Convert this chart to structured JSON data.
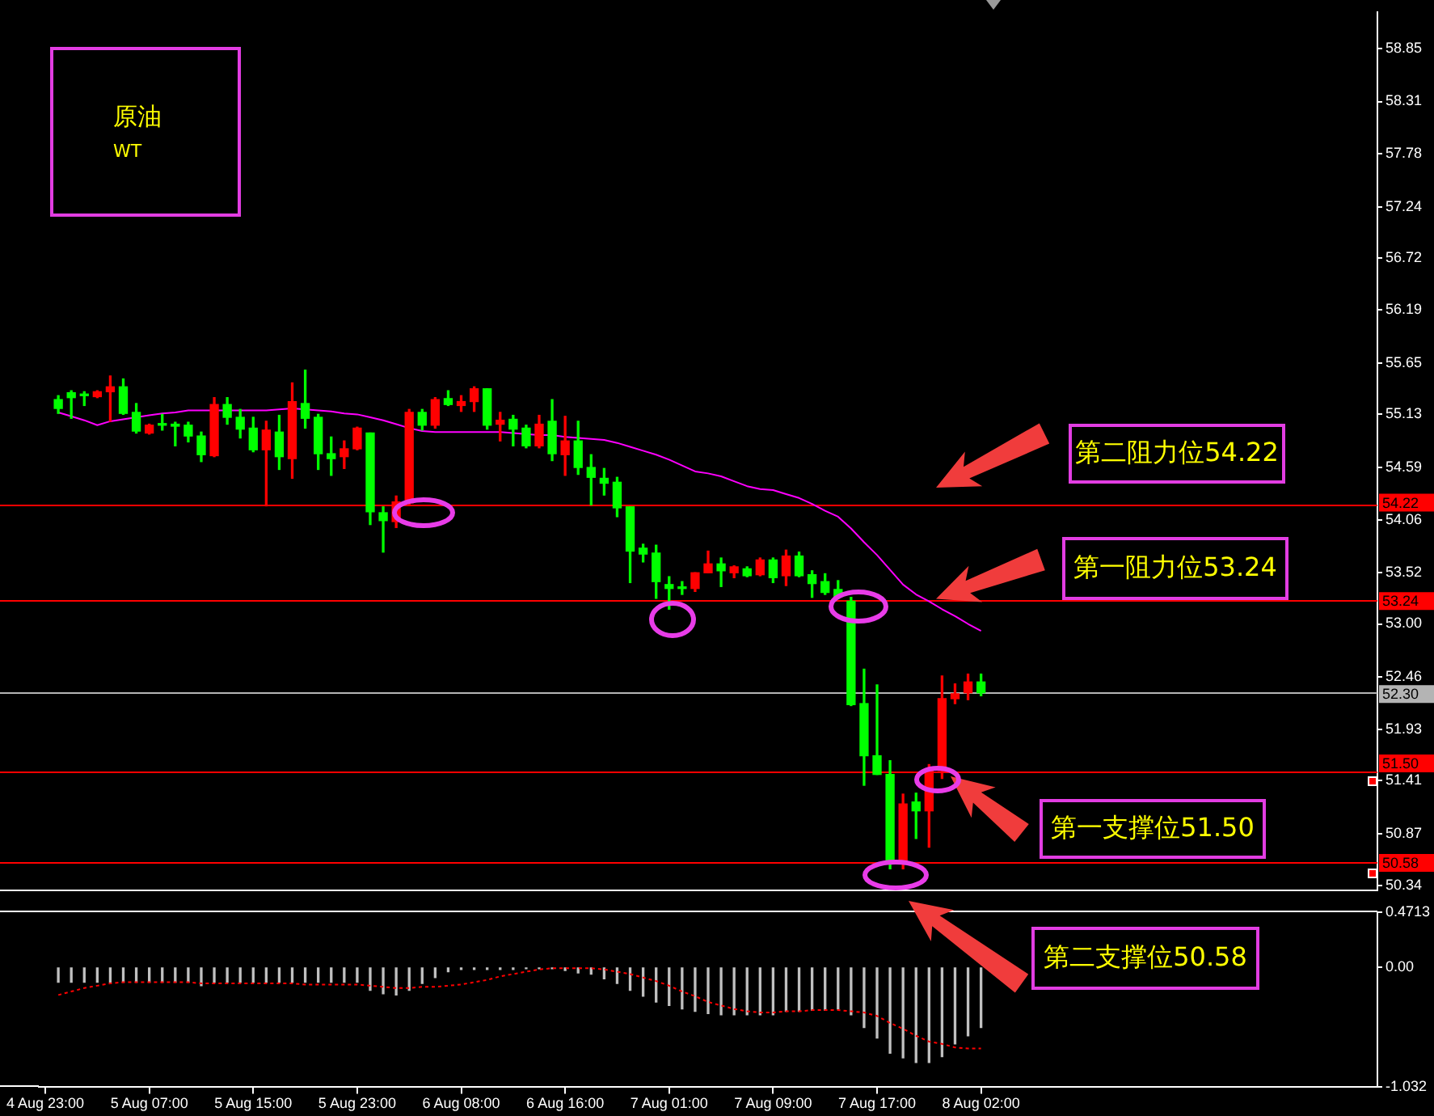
{
  "chart_data": [
    {
      "type": "candlestick",
      "title": "原油",
      "subtitle": "WT",
      "categories": [
        null,
        null,
        null,
        null,
        null,
        null,
        null,
        null,
        null,
        null,
        null,
        null,
        null,
        null,
        null,
        null,
        null,
        null,
        null,
        null,
        null,
        null,
        null,
        null,
        null,
        null,
        null,
        null,
        null,
        null,
        null,
        null,
        null,
        null,
        null,
        null,
        null,
        null,
        null,
        null,
        null,
        null,
        null,
        null,
        null,
        null,
        null,
        null,
        null,
        null,
        null,
        null,
        null,
        null,
        null,
        null,
        null,
        null,
        null,
        null,
        null,
        null,
        null,
        null,
        null,
        null,
        null,
        null,
        null,
        null,
        null,
        null,
        null,
        null,
        null,
        null,
        null,
        null,
        null,
        null,
        null,
        null,
        null,
        null,
        null,
        null,
        null,
        null,
        null,
        null,
        null,
        null,
        null,
        null,
        null,
        null,
        null,
        null,
        null,
        null,
        null,
        null,
        null
      ],
      "ohlc": [
        null,
        [
          55.28,
          55.32,
          55.14,
          55.19
        ],
        [
          55.35,
          55.37,
          55.09,
          55.3
        ],
        [
          55.33,
          55.36,
          55.22,
          55.32
        ],
        [
          55.31,
          55.37,
          55.3,
          55.36
        ],
        [
          55.36,
          55.52,
          55.06,
          55.41
        ],
        [
          55.41,
          55.49,
          55.13,
          55.14
        ],
        [
          55.15,
          55.24,
          54.94,
          54.96
        ],
        [
          54.94,
          55.03,
          54.93,
          55.02
        ],
        [
          55.03,
          55.13,
          54.97,
          55.02
        ],
        [
          55.03,
          55.05,
          54.81,
          55.01
        ],
        [
          55.02,
          55.05,
          54.85,
          54.91
        ],
        [
          54.91,
          54.95,
          54.65,
          54.72
        ],
        [
          54.71,
          55.3,
          54.7,
          55.23
        ],
        [
          55.23,
          55.3,
          55.03,
          55.1
        ],
        [
          55.1,
          55.18,
          54.89,
          54.98
        ],
        [
          54.99,
          55.1,
          54.75,
          54.77
        ],
        [
          54.77,
          55.06,
          54.2,
          54.97
        ],
        [
          54.95,
          55.12,
          54.57,
          54.7
        ],
        [
          54.68,
          55.45,
          54.48,
          55.26
        ],
        [
          55.24,
          55.58,
          54.99,
          55.09
        ],
        [
          55.1,
          55.13,
          54.57,
          54.73
        ],
        [
          54.73,
          54.9,
          54.51,
          54.68
        ],
        [
          54.7,
          54.86,
          54.58,
          54.78
        ],
        [
          54.78,
          55.0,
          54.77,
          54.99
        ],
        [
          54.94,
          54.94,
          54.01,
          54.14
        ],
        [
          54.13,
          54.19,
          53.73,
          54.05
        ],
        [
          54.04,
          54.3,
          53.98,
          54.24
        ],
        [
          54.23,
          55.18,
          54.21,
          55.15
        ],
        [
          55.15,
          55.18,
          54.97,
          55.02
        ],
        [
          55.02,
          55.3,
          54.99,
          55.28
        ],
        [
          55.29,
          55.37,
          55.22,
          55.23
        ],
        [
          55.22,
          55.32,
          55.16,
          55.26
        ],
        [
          55.26,
          55.41,
          55.16,
          55.39
        ],
        [
          55.39,
          55.39,
          54.98,
          55.02
        ],
        [
          55.03,
          55.15,
          54.86,
          55.07
        ],
        [
          55.08,
          55.12,
          54.81,
          54.98
        ],
        [
          54.99,
          55.02,
          54.79,
          54.81
        ],
        [
          54.81,
          55.12,
          54.79,
          55.03
        ],
        [
          55.06,
          55.28,
          54.66,
          54.73
        ],
        [
          54.72,
          55.11,
          54.51,
          54.86
        ],
        [
          54.86,
          55.06,
          54.52,
          54.59
        ],
        [
          54.59,
          54.72,
          54.21,
          54.49
        ],
        [
          54.48,
          54.58,
          54.31,
          54.43
        ],
        [
          54.44,
          54.49,
          54.09,
          54.18
        ],
        [
          54.19,
          54.19,
          53.42,
          53.74
        ],
        [
          53.77,
          53.81,
          53.63,
          53.71
        ],
        [
          53.72,
          53.8,
          53.26,
          53.43
        ],
        [
          53.4,
          53.48,
          53.15,
          53.36
        ],
        [
          53.37,
          53.43,
          53.3,
          53.36
        ],
        [
          53.36,
          53.52,
          53.33,
          53.52
        ],
        [
          53.52,
          53.74,
          53.52,
          53.61
        ],
        [
          53.61,
          53.67,
          53.38,
          53.54
        ],
        [
          53.52,
          53.59,
          53.47,
          53.58
        ],
        [
          53.56,
          53.58,
          53.48,
          53.49
        ],
        [
          53.5,
          53.67,
          53.49,
          53.65
        ],
        [
          53.65,
          53.67,
          53.42,
          53.47
        ],
        [
          53.49,
          53.75,
          53.39,
          53.69
        ],
        [
          53.69,
          53.73,
          53.48,
          53.49
        ],
        [
          53.5,
          53.54,
          53.27,
          53.41
        ],
        [
          53.43,
          53.51,
          53.3,
          53.32
        ],
        [
          53.35,
          53.44,
          53.26,
          53.28
        ],
        [
          53.23,
          53.27,
          52.17,
          52.18
        ],
        [
          52.19,
          52.54,
          51.36,
          51.66
        ],
        [
          51.66,
          52.38,
          51.47,
          51.47
        ],
        [
          51.47,
          51.61,
          50.51,
          50.56
        ],
        [
          50.56,
          51.27,
          50.51,
          51.17
        ],
        [
          51.19,
          51.28,
          50.82,
          51.1
        ],
        [
          51.1,
          51.57,
          50.73,
          51.51
        ],
        [
          51.51,
          52.47,
          51.43,
          52.24
        ],
        [
          52.24,
          52.39,
          52.19,
          52.29
        ],
        [
          52.3,
          52.49,
          52.23,
          52.41
        ],
        [
          52.41,
          52.49,
          52.27,
          52.3
        ],
        null,
        null,
        null,
        null,
        null,
        null,
        null,
        null,
        null,
        null,
        null,
        null,
        null,
        null,
        null,
        null,
        null,
        null,
        null,
        null,
        null,
        null,
        null,
        null,
        null,
        null,
        null,
        null,
        null,
        null
      ],
      "colors": [
        null,
        "#00ff00",
        "#00ff00",
        "#00ff00",
        "#ff0000",
        "#ff0000",
        "#00ff00",
        "#00ff00",
        "#ff0000",
        "#00ff00",
        "#00ff00",
        "#00ff00",
        "#00ff00",
        "#ff0000",
        "#00ff00",
        "#00ff00",
        "#00ff00",
        "#ff0000",
        "#00ff00",
        "#ff0000",
        "#00ff00",
        "#00ff00",
        "#00ff00",
        "#ff0000",
        "#ff0000",
        "#00ff00",
        "#00ff00",
        "#ff0000",
        "#ff0000",
        "#00ff00",
        "#ff0000",
        "#00ff00",
        "#ff0000",
        "#ff0000",
        "#00ff00",
        "#ff0000",
        "#00ff00",
        "#00ff00",
        "#ff0000",
        "#00ff00",
        "#ff0000",
        "#00ff00",
        "#00ff00",
        "#00ff00",
        "#00ff00",
        "#00ff00",
        "#00ff00",
        "#00ff00",
        "#00ff00",
        "#00ff00",
        "#ff0000",
        "#ff0000",
        "#00ff00",
        "#ff0000",
        "#00ff00",
        "#ff0000",
        "#00ff00",
        "#ff0000",
        "#00ff00",
        "#00ff00",
        "#00ff00",
        "#00ff00",
        "#00ff00",
        "#00ff00",
        "#00ff00",
        "#00ff00",
        "#ff0000",
        "#00ff00",
        "#ff0000",
        "#ff0000",
        "#ff0000",
        "#ff0000",
        "#00ff00",
        null,
        null,
        null,
        null,
        null,
        null,
        null,
        null,
        null,
        null,
        null,
        null,
        null,
        null,
        null,
        null,
        null,
        null,
        null,
        null,
        null,
        null,
        null,
        null,
        null,
        null,
        null,
        null,
        null,
        null
      ],
      "series": [
        {
          "type": "line",
          "color": "#ff00ff",
          "values": [
            null,
            55.15,
            55.11,
            55.07,
            55.02,
            55.06,
            55.08,
            55.1,
            55.12,
            55.14,
            55.15,
            55.17,
            55.17,
            55.17,
            55.17,
            55.17,
            55.17,
            55.17,
            55.18,
            55.19,
            55.18,
            55.17,
            55.16,
            55.14,
            55.13,
            55.1,
            55.07,
            55.03,
            54.99,
            54.96,
            54.95,
            54.95,
            54.95,
            54.95,
            54.95,
            54.95,
            54.94,
            54.93,
            54.92,
            54.92,
            54.9,
            54.89,
            54.88,
            54.87,
            54.84,
            54.8,
            54.76,
            54.72,
            54.67,
            54.61,
            54.55,
            54.53,
            54.5,
            54.45,
            54.4,
            54.37,
            54.36,
            54.32,
            54.28,
            54.22,
            54.15,
            54.09,
            53.97,
            53.83,
            53.7,
            53.55,
            53.4,
            53.3,
            53.23,
            53.15,
            53.08,
            53.0,
            52.93,
            null,
            null,
            null,
            null,
            null,
            null,
            null,
            null,
            null,
            null,
            null,
            null,
            null,
            null,
            null,
            null,
            null,
            null,
            null,
            null,
            null,
            null,
            null,
            null,
            null,
            null,
            null,
            null,
            null,
            null
          ]
        }
      ],
      "ylim": [
        50.29,
        59.22
      ],
      "yticks": [
        58.85,
        58.31,
        57.78,
        57.24,
        56.72,
        56.19,
        55.65,
        55.13,
        54.59,
        54.06,
        53.52,
        {
          "value": 53,
          "label": "53.00"
        },
        52.46,
        51.93,
        51.41,
        50.87,
        50.34
      ],
      "ref_lines": [
        {
          "axis": "y",
          "value": 54.22,
          "label": "54.22",
          "color": "#ff0000"
        },
        {
          "axis": "y",
          "value": 53.24,
          "label": "53.24",
          "color": "#ff0000"
        },
        {
          "axis": "y",
          "value": 52.3,
          "label": "52.30",
          "color": "#b4b4b4"
        },
        {
          "axis": "y",
          "value": 51.5,
          "label": "51.50",
          "color": "#ff0000"
        },
        {
          "axis": "y",
          "value": 50.58,
          "label": "50.58",
          "color": "#ff0000"
        }
      ],
      "annotations": [
        {
          "text": "第二阻力位54.22",
          "y": 54.22
        },
        {
          "text": "第一阻力位53.24",
          "y": 53.24
        },
        {
          "text": "第一支撑位51.50",
          "y": 51.5
        },
        "第二支撑位50.58"
      ],
      "tick_labels": "y"
    },
    {
      "type": "bar",
      "categories": [
        "4 Aug 23:00",
        null,
        null,
        null,
        null,
        null,
        null,
        null,
        "5 Aug 07:00",
        null,
        null,
        null,
        null,
        null,
        null,
        null,
        "5 Aug 15:00",
        null,
        null,
        null,
        null,
        null,
        null,
        null,
        "5 Aug 23:00",
        null,
        null,
        null,
        null,
        null,
        null,
        null,
        "6 Aug 08:00",
        null,
        null,
        null,
        null,
        null,
        null,
        null,
        "6 Aug 16:00",
        null,
        null,
        null,
        null,
        null,
        null,
        null,
        "7 Aug 01:00",
        null,
        null,
        null,
        null,
        null,
        null,
        null,
        "7 Aug 09:00",
        null,
        null,
        null,
        null,
        null,
        null,
        null,
        "7 Aug 17:00",
        null,
        null,
        null,
        null,
        null,
        null,
        null,
        "8 Aug 02:00",
        null,
        null,
        null,
        null,
        null,
        null,
        null,
        null,
        null,
        null,
        null,
        null,
        null,
        null,
        null,
        null,
        null,
        null,
        null,
        null,
        null,
        null,
        null,
        null,
        null,
        null,
        null,
        null,
        null,
        null
      ],
      "series": [
        {
          "color": "#c0c0c0",
          "values": [
            null,
            -0.13,
            -0.13,
            -0.13,
            -0.13,
            -0.13,
            -0.13,
            -0.13,
            -0.13,
            -0.13,
            -0.13,
            -0.13,
            -0.16,
            -0.13,
            -0.13,
            -0.13,
            -0.13,
            -0.13,
            -0.13,
            -0.13,
            -0.13,
            -0.13,
            -0.13,
            -0.13,
            -0.13,
            -0.2,
            -0.23,
            -0.24,
            -0.2,
            -0.14,
            -0.09,
            -0.04,
            -0.02,
            -0.02,
            -0.02,
            -0.02,
            -0.02,
            -0.01,
            -0.01,
            -0.01,
            -0.03,
            -0.05,
            -0.06,
            -0.1,
            -0.14,
            -0.2,
            -0.25,
            -0.3,
            -0.33,
            -0.36,
            -0.38,
            -0.4,
            -0.41,
            -0.41,
            -0.41,
            -0.41,
            -0.41,
            -0.38,
            -0.38,
            -0.37,
            -0.37,
            -0.36,
            -0.41,
            -0.52,
            -0.61,
            -0.74,
            -0.78,
            -0.82,
            -0.82,
            -0.77,
            -0.66,
            -0.59,
            -0.52,
            null,
            null,
            null,
            null,
            null,
            null,
            null,
            null,
            null,
            null,
            null,
            null,
            null,
            null,
            null,
            null,
            null,
            null,
            null,
            null,
            null,
            null,
            null,
            null,
            null,
            null,
            null,
            null,
            null,
            null
          ]
        },
        {
          "type": "line",
          "color": "#ff0000",
          "line_style": "dotted",
          "values": [
            null,
            -0.24,
            -0.21,
            -0.18,
            -0.16,
            -0.14,
            -0.13,
            -0.13,
            -0.13,
            -0.13,
            -0.13,
            -0.13,
            -0.14,
            -0.14,
            -0.14,
            -0.14,
            -0.14,
            -0.14,
            -0.14,
            -0.14,
            -0.15,
            -0.15,
            -0.15,
            -0.15,
            -0.15,
            -0.16,
            -0.17,
            -0.18,
            -0.18,
            -0.17,
            -0.17,
            -0.16,
            -0.15,
            -0.13,
            -0.11,
            -0.08,
            -0.06,
            -0.04,
            -0.02,
            -0.01,
            -0.01,
            -0.01,
            -0.01,
            -0.02,
            -0.04,
            -0.06,
            -0.09,
            -0.12,
            -0.16,
            -0.21,
            -0.25,
            -0.3,
            -0.33,
            -0.36,
            -0.38,
            -0.39,
            -0.39,
            -0.38,
            -0.38,
            -0.37,
            -0.37,
            -0.37,
            -0.38,
            -0.39,
            -0.42,
            -0.48,
            -0.53,
            -0.59,
            -0.64,
            -0.66,
            -0.69,
            -0.7,
            -0.7,
            null,
            null,
            null,
            null,
            null,
            null,
            null,
            null,
            null,
            null,
            null,
            null,
            null,
            null,
            null,
            null,
            null,
            null,
            null,
            null,
            null,
            null,
            null,
            null,
            null,
            null,
            null,
            null,
            null,
            null
          ]
        }
      ],
      "ylim": [
        -1.032,
        0.4713
      ],
      "yticks": [
        0.4713,
        {
          "value": 0,
          "label": "0.00"
        },
        -1.032
      ]
    }
  ]
}
